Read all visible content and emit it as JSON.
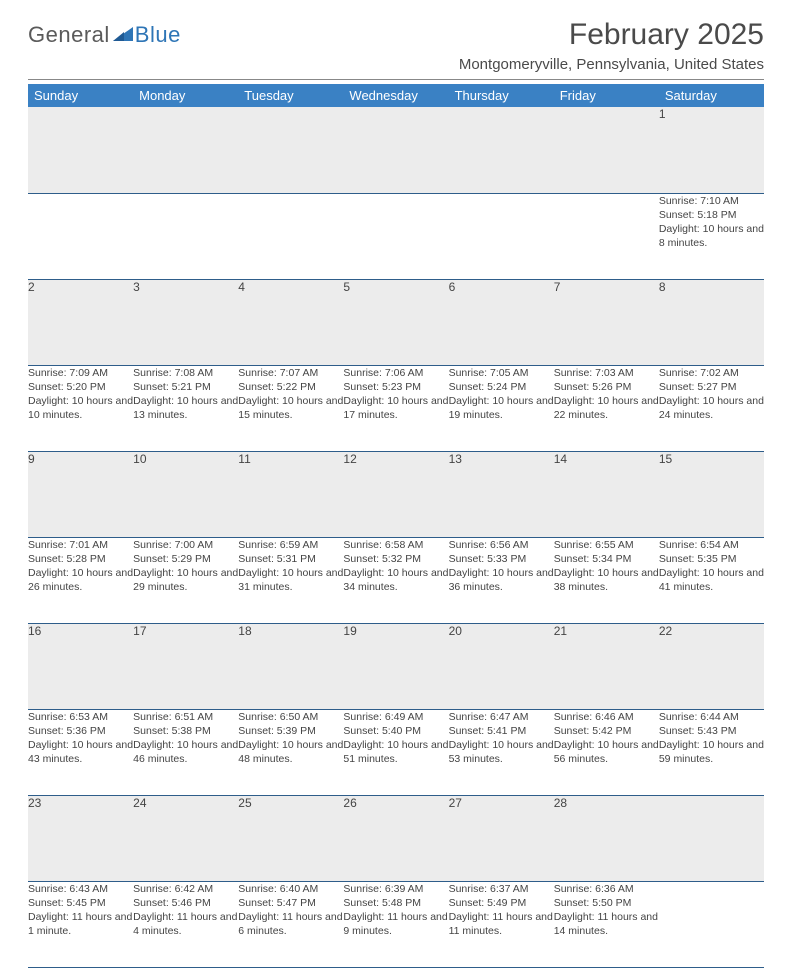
{
  "logo": {
    "text_general": "General",
    "text_blue": "Blue"
  },
  "title": "February 2025",
  "location": "Montgomeryville, Pennsylvania, United States",
  "colors": {
    "header_bg": "#3a81c4",
    "header_text": "#ffffff",
    "daynum_bg": "#ececec",
    "row_border": "#2e5d8a",
    "text": "#444444",
    "logo_gray": "#5a5a5a",
    "logo_blue": "#2e75b6"
  },
  "typography": {
    "title_fontsize": 30,
    "location_fontsize": 15,
    "header_fontsize": 13,
    "daynum_fontsize": 12,
    "detail_fontsize": 10.5
  },
  "day_headers": [
    "Sunday",
    "Monday",
    "Tuesday",
    "Wednesday",
    "Thursday",
    "Friday",
    "Saturday"
  ],
  "weeks": [
    [
      null,
      null,
      null,
      null,
      null,
      null,
      {
        "n": "1",
        "sr": "7:10 AM",
        "ss": "5:18 PM",
        "dl": "10 hours and 8 minutes."
      }
    ],
    [
      {
        "n": "2",
        "sr": "7:09 AM",
        "ss": "5:20 PM",
        "dl": "10 hours and 10 minutes."
      },
      {
        "n": "3",
        "sr": "7:08 AM",
        "ss": "5:21 PM",
        "dl": "10 hours and 13 minutes."
      },
      {
        "n": "4",
        "sr": "7:07 AM",
        "ss": "5:22 PM",
        "dl": "10 hours and 15 minutes."
      },
      {
        "n": "5",
        "sr": "7:06 AM",
        "ss": "5:23 PM",
        "dl": "10 hours and 17 minutes."
      },
      {
        "n": "6",
        "sr": "7:05 AM",
        "ss": "5:24 PM",
        "dl": "10 hours and 19 minutes."
      },
      {
        "n": "7",
        "sr": "7:03 AM",
        "ss": "5:26 PM",
        "dl": "10 hours and 22 minutes."
      },
      {
        "n": "8",
        "sr": "7:02 AM",
        "ss": "5:27 PM",
        "dl": "10 hours and 24 minutes."
      }
    ],
    [
      {
        "n": "9",
        "sr": "7:01 AM",
        "ss": "5:28 PM",
        "dl": "10 hours and 26 minutes."
      },
      {
        "n": "10",
        "sr": "7:00 AM",
        "ss": "5:29 PM",
        "dl": "10 hours and 29 minutes."
      },
      {
        "n": "11",
        "sr": "6:59 AM",
        "ss": "5:31 PM",
        "dl": "10 hours and 31 minutes."
      },
      {
        "n": "12",
        "sr": "6:58 AM",
        "ss": "5:32 PM",
        "dl": "10 hours and 34 minutes."
      },
      {
        "n": "13",
        "sr": "6:56 AM",
        "ss": "5:33 PM",
        "dl": "10 hours and 36 minutes."
      },
      {
        "n": "14",
        "sr": "6:55 AM",
        "ss": "5:34 PM",
        "dl": "10 hours and 38 minutes."
      },
      {
        "n": "15",
        "sr": "6:54 AM",
        "ss": "5:35 PM",
        "dl": "10 hours and 41 minutes."
      }
    ],
    [
      {
        "n": "16",
        "sr": "6:53 AM",
        "ss": "5:36 PM",
        "dl": "10 hours and 43 minutes."
      },
      {
        "n": "17",
        "sr": "6:51 AM",
        "ss": "5:38 PM",
        "dl": "10 hours and 46 minutes."
      },
      {
        "n": "18",
        "sr": "6:50 AM",
        "ss": "5:39 PM",
        "dl": "10 hours and 48 minutes."
      },
      {
        "n": "19",
        "sr": "6:49 AM",
        "ss": "5:40 PM",
        "dl": "10 hours and 51 minutes."
      },
      {
        "n": "20",
        "sr": "6:47 AM",
        "ss": "5:41 PM",
        "dl": "10 hours and 53 minutes."
      },
      {
        "n": "21",
        "sr": "6:46 AM",
        "ss": "5:42 PM",
        "dl": "10 hours and 56 minutes."
      },
      {
        "n": "22",
        "sr": "6:44 AM",
        "ss": "5:43 PM",
        "dl": "10 hours and 59 minutes."
      }
    ],
    [
      {
        "n": "23",
        "sr": "6:43 AM",
        "ss": "5:45 PM",
        "dl": "11 hours and 1 minute."
      },
      {
        "n": "24",
        "sr": "6:42 AM",
        "ss": "5:46 PM",
        "dl": "11 hours and 4 minutes."
      },
      {
        "n": "25",
        "sr": "6:40 AM",
        "ss": "5:47 PM",
        "dl": "11 hours and 6 minutes."
      },
      {
        "n": "26",
        "sr": "6:39 AM",
        "ss": "5:48 PM",
        "dl": "11 hours and 9 minutes."
      },
      {
        "n": "27",
        "sr": "6:37 AM",
        "ss": "5:49 PM",
        "dl": "11 hours and 11 minutes."
      },
      {
        "n": "28",
        "sr": "6:36 AM",
        "ss": "5:50 PM",
        "dl": "11 hours and 14 minutes."
      },
      null
    ]
  ],
  "labels": {
    "sunrise": "Sunrise:",
    "sunset": "Sunset:",
    "daylight": "Daylight:"
  }
}
